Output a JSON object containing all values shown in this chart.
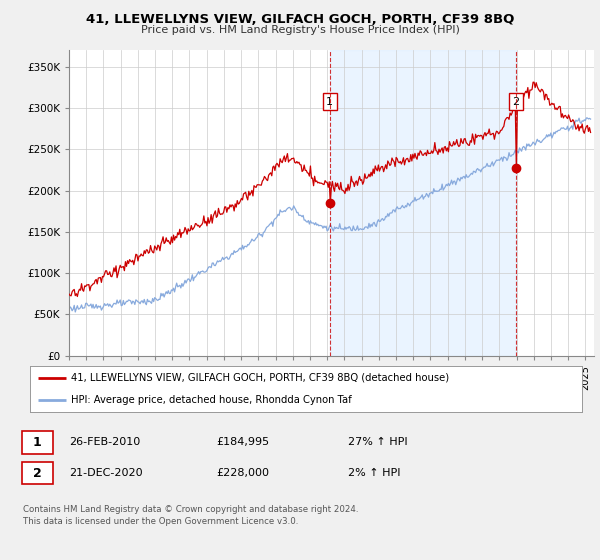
{
  "title": "41, LLEWELLYNS VIEW, GILFACH GOCH, PORTH, CF39 8BQ",
  "subtitle": "Price paid vs. HM Land Registry's House Price Index (HPI)",
  "ylabel_ticks": [
    "£0",
    "£50K",
    "£100K",
    "£150K",
    "£200K",
    "£250K",
    "£300K",
    "£350K"
  ],
  "ytick_values": [
    0,
    50000,
    100000,
    150000,
    200000,
    250000,
    300000,
    350000
  ],
  "ylim": [
    0,
    370000
  ],
  "xlim_start": 1995.0,
  "xlim_end": 2025.5,
  "marker1_x": 2010.15,
  "marker1_y": 184995,
  "marker2_x": 2020.97,
  "marker2_y": 228000,
  "legend_line1": "41, LLEWELLYNS VIEW, GILFACH GOCH, PORTH, CF39 8BQ (detached house)",
  "legend_line2": "HPI: Average price, detached house, Rhondda Cynon Taf",
  "table_row1_date": "26-FEB-2010",
  "table_row1_price": "£184,995",
  "table_row1_hpi": "27% ↑ HPI",
  "table_row2_date": "21-DEC-2020",
  "table_row2_price": "£228,000",
  "table_row2_hpi": "2% ↑ HPI",
  "footer": "Contains HM Land Registry data © Crown copyright and database right 2024.\nThis data is licensed under the Open Government Licence v3.0.",
  "line_color_red": "#cc0000",
  "line_color_blue": "#88aadd",
  "background_color": "#f0f0f0",
  "plot_bg_color": "#ffffff",
  "grid_color": "#cccccc",
  "vline_color": "#cc0000",
  "shade_color": "#ddeeff"
}
